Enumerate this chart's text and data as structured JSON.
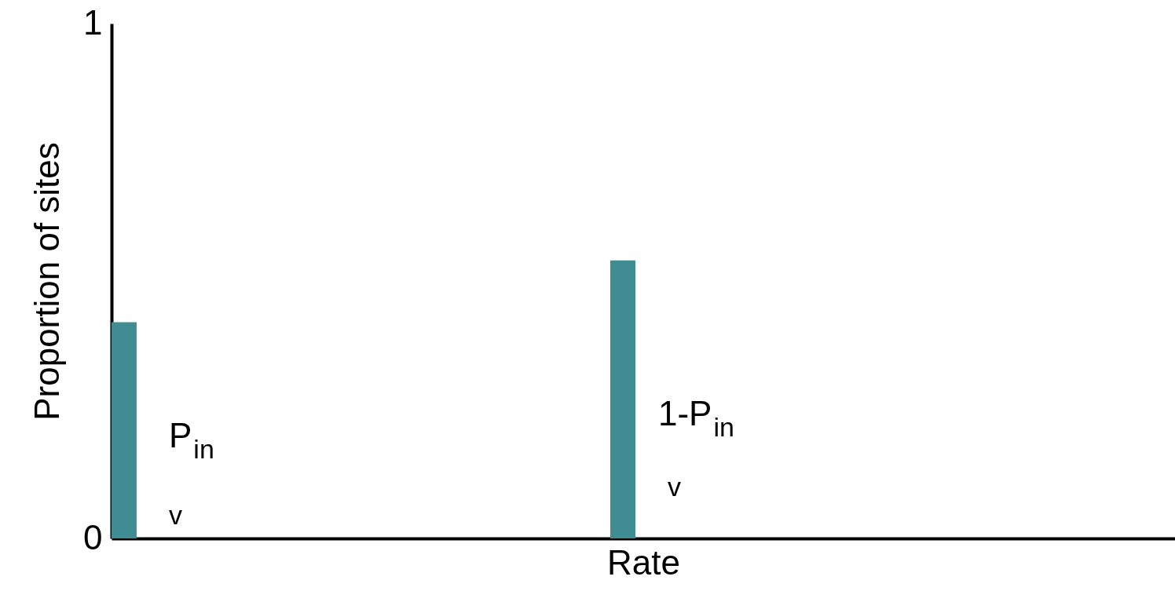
{
  "chart_data": {
    "type": "bar",
    "categories": [
      null,
      null,
      null
    ],
    "values": [
      0.42,
      0.54,
      null
    ],
    "color": "#3f8c92",
    "ylim": [
      0,
      1
    ],
    "yticks": [
      0,
      1
    ],
    "xlabel": "Rate",
    "ylabel": "Proportion of sites",
    "tick_labels": "y",
    "annotations": [
      "P$_{in}$",
      "v",
      "1-P$_{in}$",
      "v"
    ]
  }
}
